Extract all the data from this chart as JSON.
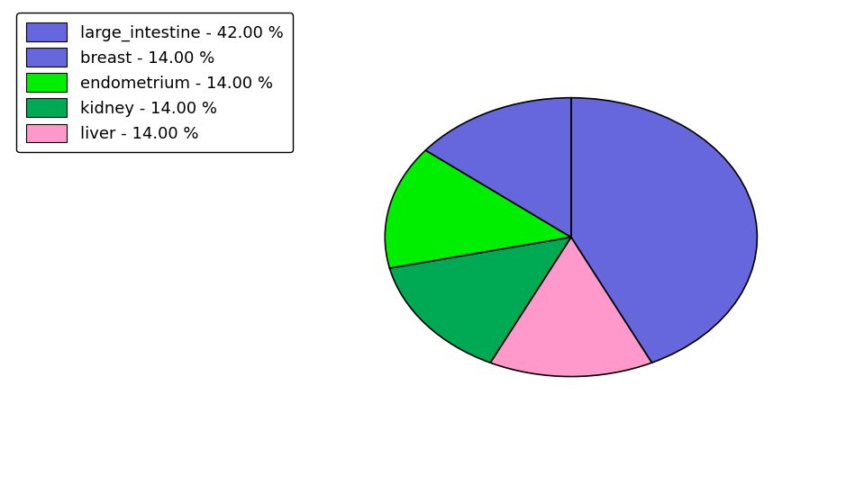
{
  "labels": [
    "large_intestine",
    "liver",
    "kidney",
    "endometrium",
    "breast"
  ],
  "values": [
    42.0,
    14.0,
    14.0,
    14.0,
    14.0
  ],
  "colors": [
    "#6666dd",
    "#ff99cc",
    "#00aa55",
    "#00ee00",
    "#6666dd"
  ],
  "legend_labels": [
    "large_intestine - 42.00 %",
    "breast - 14.00 %",
    "endometrium - 14.00 %",
    "kidney - 14.00 %",
    "liver - 14.00 %"
  ],
  "legend_colors": [
    "#6666dd",
    "#6666dd",
    "#00ee00",
    "#00aa55",
    "#ff99cc"
  ],
  "startangle": 90,
  "background_color": "#ffffff",
  "ellipse_yscale": 0.75
}
